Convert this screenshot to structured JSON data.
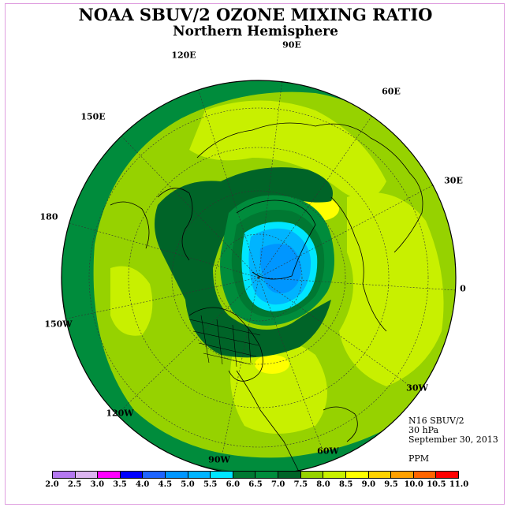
{
  "title": "NOAA SBUV/2 OZONE MIXING RATIO",
  "subtitle": "Northern Hemisphere",
  "longitude_labels": [
    "90E",
    "60E",
    "30E",
    "0",
    "30W",
    "60W",
    "90W",
    "120W",
    "150W",
    "180",
    "150E",
    "120E"
  ],
  "info": {
    "instrument": "N16 SBUV/2",
    "level": "30 hPa",
    "date": "September 30, 2013",
    "units": "PPM"
  },
  "colorbar": {
    "ticks": [
      "2.0",
      "2.5",
      "3.0",
      "3.5",
      "4.0",
      "4.5",
      "5.0",
      "5.5",
      "6.0",
      "6.5",
      "7.0",
      "7.5",
      "8.0",
      "8.5",
      "9.0",
      "9.5",
      "10.0",
      "10.5",
      "11.0"
    ],
    "colors": [
      "#b478f0",
      "#dcb4f0",
      "#ff00ff",
      "#0000ff",
      "#1e64ff",
      "#0096ff",
      "#00b4ff",
      "#00e6ff",
      "#007832",
      "#008c3c",
      "#006428",
      "#96d200",
      "#c8f000",
      "#ffff00",
      "#ffd200",
      "#ffa000",
      "#ff6400",
      "#ff0000",
      "#8c5032"
    ]
  },
  "map_colors": {
    "outer_ring": "#006428",
    "band_70": "#008c3c",
    "band_75": "#96d200",
    "band_80": "#c8f000",
    "band_85": "#ffff00",
    "band_60": "#007832",
    "band_55": "#00e6ff",
    "band_50": "#00b4ff",
    "band_45": "#0096ff"
  }
}
